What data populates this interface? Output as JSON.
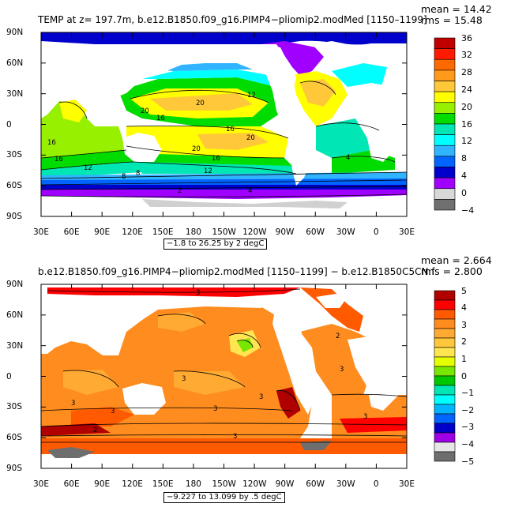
{
  "top": {
    "title": "TEMP  at z=  197.7m, b.e12.B1850.f09_g16.PIMP4−pliomip2.modMed  [1150–1199]",
    "mean_label": "mean = 14.42",
    "rms_label": "rms = 15.48",
    "range_label": "−1.8 to 26.25 by 2 degC",
    "lat_ticks": [
      "90N",
      "60N",
      "30N",
      "0",
      "30S",
      "60S",
      "90S"
    ],
    "lon_ticks": [
      "30E",
      "60E",
      "90E",
      "120E",
      "150E",
      "180",
      "150W",
      "120W",
      "90W",
      "60W",
      "30W",
      "0",
      "30E"
    ],
    "colorbar_labels": [
      "36",
      "32",
      "28",
      "24",
      "20",
      "16",
      "12",
      "8",
      "4",
      "0",
      "−4"
    ],
    "colorbar_colors": [
      "#c00000",
      "#ff1a00",
      "#ff6a00",
      "#ff9a1a",
      "#ffc83a",
      "#ffff00",
      "#96f000",
      "#00dc00",
      "#00e6b4",
      "#00ffff",
      "#30b4ff",
      "#0064ff",
      "#0000cc",
      "#a000ff",
      "#d8d8d8",
      "#707070"
    ],
    "contour_labels": [
      "20",
      "20",
      "16",
      "16",
      "12",
      "20",
      "20",
      "16",
      "12",
      "8",
      "4",
      "16",
      "12",
      "8",
      "4",
      "16",
      "2"
    ]
  },
  "bottom": {
    "title": "b.e12.B1850.f09_g16.PIMP4−pliomip2.modMed  [1150–1199]  −  b.e12.B1850C5CN.f",
    "mean_label": "mean = 2.664",
    "rms_label": "rms = 2.800",
    "range_label": "−9.227 to 13.099 by .5 degC",
    "lat_ticks": [
      "90N",
      "60N",
      "30N",
      "0",
      "30S",
      "60S",
      "90S"
    ],
    "lon_ticks": [
      "30E",
      "60E",
      "90E",
      "120E",
      "150E",
      "180",
      "150W",
      "120W",
      "90W",
      "60W",
      "30W",
      "0",
      "30E"
    ],
    "colorbar_labels": [
      "5",
      "4",
      "3",
      "2",
      "1",
      "0",
      "−1",
      "−2",
      "−3",
      "−4",
      "−5"
    ],
    "colorbar_colors": [
      "#b00000",
      "#ff0000",
      "#ff5a00",
      "#ff8c1e",
      "#ffaa32",
      "#ffc83c",
      "#ffe650",
      "#e6ff00",
      "#78e600",
      "#00c800",
      "#00e6b4",
      "#00ffff",
      "#00b4ff",
      "#0064ff",
      "#0000c8",
      "#a000e6",
      "#e6e6e6",
      "#6e6e6e"
    ],
    "contour_labels": [
      "3",
      "2",
      "3",
      "3",
      "3",
      "3",
      "3",
      "3",
      "3",
      "2",
      "3"
    ]
  },
  "map_colors": {
    "land": "#ffffff",
    "frame": "#000000",
    "top_gray_ice": "#d0d0d0",
    "bottom_gray_ice": "#707070"
  }
}
